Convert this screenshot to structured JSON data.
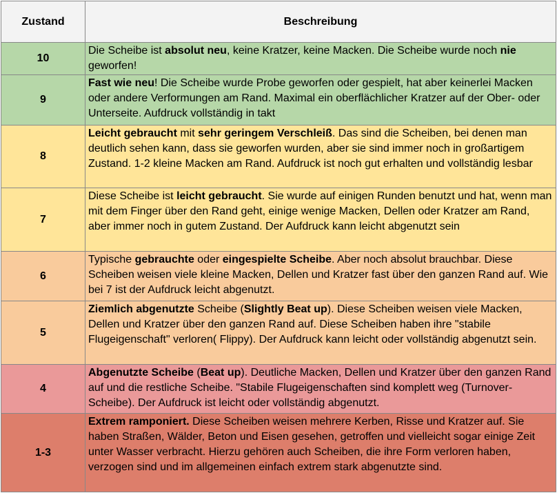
{
  "table": {
    "header": [
      "Zustand",
      "Beschreibung"
    ],
    "header_color": "#f3f3f3",
    "rows": [
      {
        "grade": "10",
        "color": "#b6d7a8",
        "description": [
          {
            "text": "Die Scheibe ist ",
            "bold": false
          },
          {
            "text": "absolut neu",
            "bold": true
          },
          {
            "text": ", keine Kratzer, keine Macken. Die Scheibe wurde noch ",
            "bold": false
          },
          {
            "text": "nie",
            "bold": true
          },
          {
            "text": " geworfen!",
            "bold": false
          }
        ]
      },
      {
        "grade": "9",
        "color": "#b6d7a8",
        "description": [
          {
            "text": "Fast wie neu",
            "bold": true
          },
          {
            "text": "! Die Scheibe wurde Probe geworfen oder gespielt, hat aber keinerlei Macken oder andere Verformungen am Rand. Maximal ein oberflächlicher Kratzer auf der Ober- oder Unterseite. Aufdruck vollständig in takt",
            "bold": false
          }
        ]
      },
      {
        "grade": "8",
        "color": "#ffe599",
        "description": [
          {
            "text": "Leicht gebraucht",
            "bold": true
          },
          {
            "text": " mit ",
            "bold": false
          },
          {
            "text": "sehr geringem Verschleiß",
            "bold": true
          },
          {
            "text": ". Das sind die Scheiben, bei denen man deutlich sehen kann, dass sie geworfen wurden, aber sie sind immer noch in großartigem Zustand. 1-2 kleine Macken am Rand. Aufdruck ist noch gut erhalten und vollständig lesbar",
            "bold": false
          }
        ]
      },
      {
        "grade": "7",
        "color": "#ffe599",
        "description": [
          {
            "text": "Diese Scheibe ist ",
            "bold": false
          },
          {
            "text": "leicht gebraucht",
            "bold": true
          },
          {
            "text": ". Sie wurde auf einigen Runden benutzt und hat, wenn man mit dem Finger über den Rand geht, einige wenige Macken, Dellen oder Kratzer am Rand, aber immer noch in gutem Zustand. Der Aufdruck kann leicht abgenutzt sein",
            "bold": false
          }
        ]
      },
      {
        "grade": "6",
        "color": "#f9cb9c",
        "description": [
          {
            "text": "Typische ",
            "bold": false
          },
          {
            "text": "gebrauchte",
            "bold": true
          },
          {
            "text": " oder ",
            "bold": false
          },
          {
            "text": "eingespielte Scheibe",
            "bold": true
          },
          {
            "text": ". Aber noch absolut brauchbar. Diese Scheiben weisen viele kleine Macken, Dellen und Kratzer fast über den ganzen Rand auf. Wie bei 7 ist der Aufdruck leicht abgenutzt.",
            "bold": false
          }
        ]
      },
      {
        "grade": "5",
        "color": "#f9cb9c",
        "description": [
          {
            "text": "Ziemlich abgenutzte",
            "bold": true
          },
          {
            "text": " Scheibe (",
            "bold": false
          },
          {
            "text": "Slightly Beat up",
            "bold": true
          },
          {
            "text": "). Diese Scheiben weisen viele Macken, Dellen und Kratzer über den ganzen Rand auf. Diese Scheiben haben ihre \"stabile Flugeigenschaft\" verloren( Flippy). Der Aufdruck kann leicht oder vollständig abgenutzt sein.",
            "bold": false
          }
        ]
      },
      {
        "grade": "4",
        "color": "#ea9999",
        "description": [
          {
            "text": "Abgenutzte Scheibe",
            "bold": true
          },
          {
            "text": " (",
            "bold": false
          },
          {
            "text": "Beat up",
            "bold": true
          },
          {
            "text": "). Deutliche  Macken, Dellen und Kratzer über den ganzen Rand auf und die restliche Scheibe. \"Stabile Flugeigenschaften sind komplett weg (Turnover-Scheibe). Der Aufdruck ist leicht oder vollständig abgenutzt.",
            "bold": false
          }
        ]
      },
      {
        "grade": "1-3",
        "color": "#dd7e6b",
        "description": [
          {
            "text": "Extrem ramponiert.",
            "bold": true
          },
          {
            "text": " Diese Scheiben weisen mehrere Kerben, Risse und Kratzer auf. Sie haben Straßen, Wälder, Beton und Eisen gesehen, getroffen und vielleicht sogar einige Zeit unter Wasser verbracht. Hierzu gehören auch Scheiben, die ihre Form verloren haben, verzogen sind und im allgemeinen einfach extrem stark abgenutzte sind.",
            "bold": false
          }
        ]
      }
    ]
  }
}
